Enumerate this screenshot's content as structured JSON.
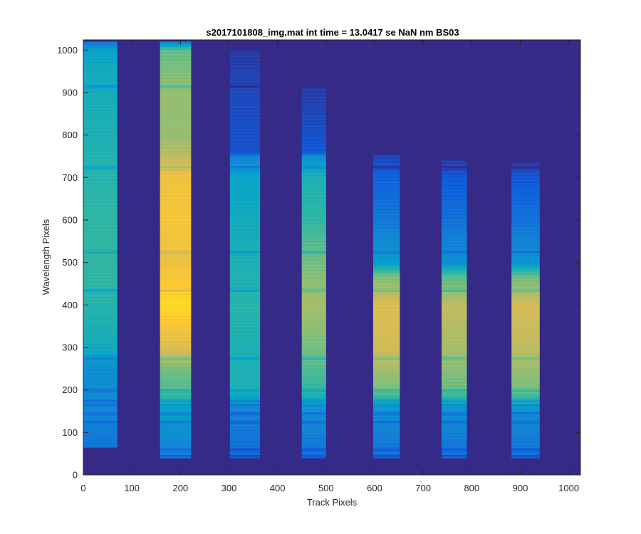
{
  "chart_data": {
    "type": "heatmap",
    "title": "s2017101808_img.mat int time = 13.0417 se  NaN nm BS03",
    "xlabel": "Track Pixels",
    "ylabel": "Wavelength Pixels",
    "xlim": [
      0,
      1024
    ],
    "ylim": [
      0,
      1024
    ],
    "xticks": [
      0,
      100,
      200,
      300,
      400,
      500,
      600,
      700,
      800,
      900,
      1000
    ],
    "yticks": [
      0,
      100,
      200,
      300,
      400,
      500,
      600,
      700,
      800,
      900,
      1000
    ],
    "colormap": "parula",
    "colormap_stops": [
      "#352a87",
      "#0f5cdd",
      "#1481d6",
      "#06a4ca",
      "#2eb7a4",
      "#87bf77",
      "#d1bb59",
      "#fec832",
      "#f9fb0e"
    ],
    "background_value": 0.0,
    "absorption_lines": [
      45,
      60,
      125,
      145,
      165,
      175,
      200,
      275,
      435,
      525,
      725,
      915
    ],
    "tracks": [
      {
        "x_range": [
          0,
          70
        ],
        "y_top": 1020,
        "y_bottom": 65,
        "intensity_profile": [
          [
            0,
            0.15
          ],
          [
            150,
            0.28
          ],
          [
            250,
            0.3
          ],
          [
            300,
            0.42
          ],
          [
            450,
            0.5
          ],
          [
            600,
            0.5
          ],
          [
            700,
            0.48
          ],
          [
            800,
            0.45
          ],
          [
            950,
            0.42
          ],
          [
            1000,
            0.38
          ],
          [
            1020,
            0.2
          ]
        ]
      },
      {
        "x_range": [
          158,
          222
        ],
        "y_top": 1020,
        "y_bottom": 40,
        "intensity_profile": [
          [
            0,
            0.2
          ],
          [
            150,
            0.35
          ],
          [
            200,
            0.55
          ],
          [
            250,
            0.6
          ],
          [
            300,
            0.78
          ],
          [
            400,
            0.92
          ],
          [
            500,
            0.82
          ],
          [
            600,
            0.85
          ],
          [
            700,
            0.83
          ],
          [
            750,
            0.72
          ],
          [
            800,
            0.65
          ],
          [
            900,
            0.65
          ],
          [
            1000,
            0.58
          ],
          [
            1020,
            0.25
          ]
        ]
      },
      {
        "x_range": [
          302,
          364
        ],
        "y_top": 1000,
        "y_bottom": 40,
        "intensity_profile": [
          [
            0,
            0.15
          ],
          [
            150,
            0.25
          ],
          [
            200,
            0.45
          ],
          [
            300,
            0.45
          ],
          [
            400,
            0.48
          ],
          [
            500,
            0.45
          ],
          [
            600,
            0.42
          ],
          [
            700,
            0.38
          ],
          [
            750,
            0.25
          ],
          [
            760,
            0.1
          ],
          [
            900,
            0.08
          ],
          [
            1000,
            0.04
          ]
        ]
      },
      {
        "x_range": [
          450,
          500
        ],
        "y_top": 920,
        "y_bottom": 40,
        "intensity_profile": [
          [
            0,
            0.15
          ],
          [
            150,
            0.3
          ],
          [
            200,
            0.5
          ],
          [
            300,
            0.6
          ],
          [
            400,
            0.68
          ],
          [
            500,
            0.6
          ],
          [
            600,
            0.5
          ],
          [
            700,
            0.45
          ],
          [
            750,
            0.3
          ],
          [
            760,
            0.12
          ],
          [
            900,
            0.05
          ]
        ]
      },
      {
        "x_range": [
          597,
          652
        ],
        "y_top": 755,
        "y_bottom": 40,
        "intensity_profile": [
          [
            0,
            0.15
          ],
          [
            150,
            0.3
          ],
          [
            200,
            0.6
          ],
          [
            300,
            0.75
          ],
          [
            400,
            0.78
          ],
          [
            470,
            0.6
          ],
          [
            500,
            0.35
          ],
          [
            600,
            0.22
          ],
          [
            700,
            0.15
          ],
          [
            755,
            0.06
          ]
        ]
      },
      {
        "x_range": [
          738,
          790
        ],
        "y_top": 740,
        "y_bottom": 40,
        "intensity_profile": [
          [
            0,
            0.15
          ],
          [
            150,
            0.3
          ],
          [
            200,
            0.58
          ],
          [
            300,
            0.68
          ],
          [
            400,
            0.72
          ],
          [
            470,
            0.55
          ],
          [
            500,
            0.3
          ],
          [
            600,
            0.2
          ],
          [
            700,
            0.12
          ],
          [
            740,
            0.05
          ]
        ]
      },
      {
        "x_range": [
          882,
          940
        ],
        "y_top": 735,
        "y_bottom": 40,
        "intensity_profile": [
          [
            0,
            0.15
          ],
          [
            150,
            0.3
          ],
          [
            200,
            0.6
          ],
          [
            300,
            0.72
          ],
          [
            400,
            0.76
          ],
          [
            470,
            0.58
          ],
          [
            500,
            0.32
          ],
          [
            600,
            0.2
          ],
          [
            700,
            0.12
          ],
          [
            735,
            0.05
          ]
        ]
      }
    ]
  }
}
